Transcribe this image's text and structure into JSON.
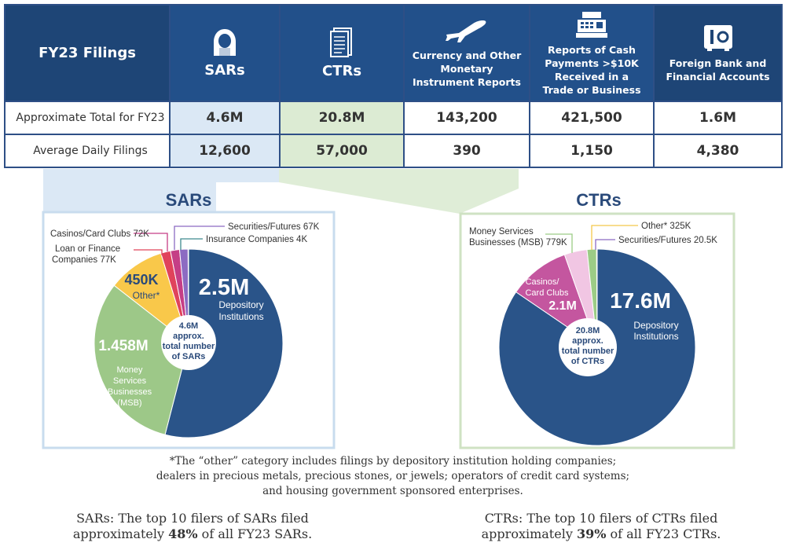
{
  "header": {
    "title": "FY23 Filings",
    "columns": [
      {
        "label": "SARs",
        "icon": "hooded-figure-icon"
      },
      {
        "label": "CTRs",
        "icon": "document-icon"
      },
      {
        "label": "Currency and Other Monetary Instrument Reports",
        "icon": "airplane-icon"
      },
      {
        "label": "Reports of Cash Payments >$10K Received in a Trade or Business",
        "icon": "cash-register-icon"
      },
      {
        "label": "Foreign Bank and Financial Accounts",
        "icon": "safe-icon"
      }
    ]
  },
  "rows": [
    {
      "label": "Approximate Total for FY23",
      "values": [
        "4.6M",
        "20.8M",
        "143,200",
        "421,500",
        "1.6M"
      ]
    },
    {
      "label": "Average Daily Filings",
      "values": [
        "12,600",
        "57,000",
        "390",
        "1,150",
        "4,380"
      ]
    }
  ],
  "chart_data": [
    {
      "type": "pie",
      "title": "SARs",
      "center_label": [
        "4.6M",
        "approx.",
        "total number",
        "of SARs"
      ],
      "slices": [
        {
          "name": "Depository Institutions",
          "value": 2.5,
          "display": "2.5M",
          "color": "#2a5489"
        },
        {
          "name": "Money Services Businesses (MSB)",
          "value": 1.458,
          "display": "1.458M",
          "color": "#9dc888"
        },
        {
          "name": "Other*",
          "value": 0.45,
          "display": "450K",
          "color": "#f9c84a"
        },
        {
          "name": "Loan or Finance Companies",
          "value": 0.077,
          "display": "77K",
          "color": "#e0435b"
        },
        {
          "name": "Casinos/Card Clubs",
          "value": 0.072,
          "display": "72K",
          "color": "#c53e86"
        },
        {
          "name": "Securities/Futures",
          "value": 0.067,
          "display": "67K",
          "color": "#8c6bc2"
        },
        {
          "name": "Insurance Companies",
          "value": 0.004,
          "display": "4K",
          "color": "#3e8a8f"
        }
      ],
      "callouts": [
        "Securities/Futures 67K",
        "Insurance Companies 4K",
        "Casinos/Card Clubs 72K",
        "Loan or Finance",
        "Companies 77K"
      ],
      "inner_labels": {
        "depository_value": "2.5M",
        "depository_name": [
          "Depository",
          "Institutions"
        ],
        "msb_value": "1.458M",
        "msb_name": [
          "Money",
          "Services",
          "Businesses",
          "(MSB)"
        ],
        "other_value": "450K",
        "other_name": "Other*"
      }
    },
    {
      "type": "pie",
      "title": "CTRs",
      "center_label": [
        "20.8M",
        "approx.",
        "total number",
        "of CTRs"
      ],
      "slices": [
        {
          "name": "Depository Institutions",
          "value": 17.6,
          "display": "17.6M",
          "color": "#2a5489"
        },
        {
          "name": "Casinos/Card Clubs",
          "value": 2.1,
          "display": "2.1M",
          "color": "#c4569f"
        },
        {
          "name": "Money Services Businesses (MSB)",
          "value": 0.779,
          "display": "779K",
          "color": "#f1c6e3"
        },
        {
          "name": "Other*",
          "value": 0.325,
          "display": "325K",
          "color": "#9ccc86"
        },
        {
          "name": "Securities/Futures",
          "value": 0.0205,
          "display": "20.5K",
          "color": "#f4c84a"
        }
      ],
      "callouts": [
        "Money Services",
        "Businesses (MSB) 779K",
        "Other* 325K",
        "Securities/Futures 20.5K"
      ],
      "inner_labels": {
        "depository_value": "17.6M",
        "depository_name": [
          "Depository",
          "Institutions"
        ],
        "casino_name": [
          "Casinos/",
          "Card Clubs"
        ],
        "casino_value": "2.1M"
      }
    }
  ],
  "footnote": [
    "*The “other” category includes filings by depository institution holding companies;",
    "dealers in precious metals, precious stones, or jewels; operators of credit card systems;",
    "and housing government sponsored enterprises."
  ],
  "top_filers": {
    "sars": {
      "line1": "SARs: The top 10 filers of SARs filed",
      "pre": "approximately ",
      "pct": "48%",
      "post": " of all FY23 SARs."
    },
    "ctrs": {
      "line1": "CTRs: The top 10 filers of CTRs filed",
      "pre": "approximately ",
      "pct": "39%",
      "post": " of all FY23 CTRs."
    }
  }
}
